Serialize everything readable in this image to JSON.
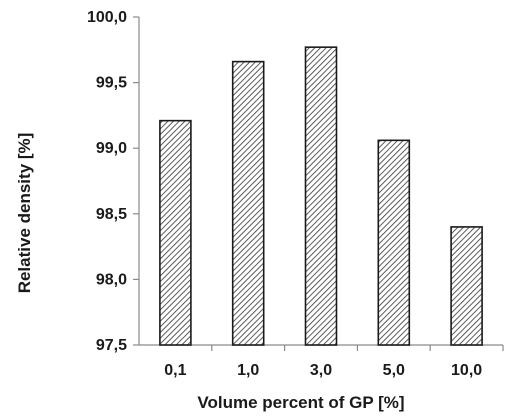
{
  "chart_data": {
    "type": "bar",
    "categories": [
      "0,1",
      "1,0",
      "3,0",
      "5,0",
      "10,0"
    ],
    "values": [
      99.21,
      99.66,
      99.77,
      99.06,
      98.4
    ],
    "title": "",
    "xlabel": "Volume percent of GP  [%]",
    "ylabel": "Relative density [%]",
    "ylim": [
      97.5,
      100.0
    ],
    "yticks": [
      "97,5",
      "98,0",
      "98,5",
      "99,0",
      "99,5",
      "100,0"
    ],
    "ytick_values": [
      97.5,
      98.0,
      98.5,
      99.0,
      99.5,
      100.0
    ],
    "grid": false,
    "bar_fill": "diagonal-hatch",
    "colors": {
      "bar_stroke": "#1a1a1a",
      "hatch": "#333333",
      "axis": "#8a8a8a",
      "text": "#1a1a1a"
    }
  }
}
